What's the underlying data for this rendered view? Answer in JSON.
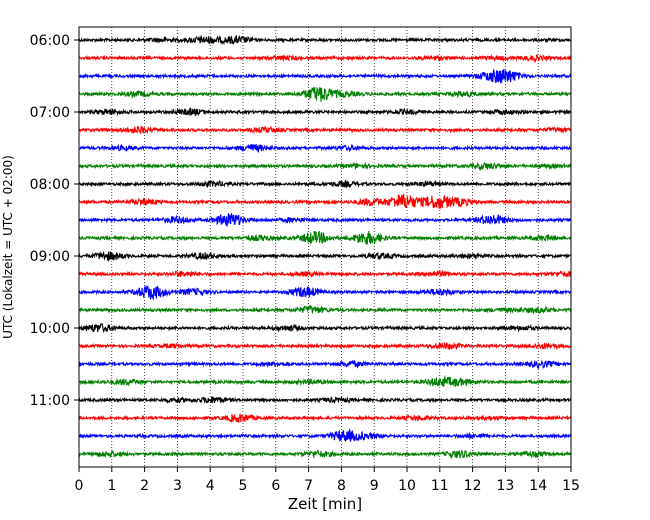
{
  "chart_data": {
    "type": "line",
    "title": "",
    "xlabel": "Zeit  [min]",
    "ylabel": "UTC (Lokalzeit = UTC + 02:00)",
    "xlim": [
      0,
      15
    ],
    "x_ticks": [
      "0",
      "1",
      "2",
      "3",
      "4",
      "5",
      "6",
      "7",
      "8",
      "9",
      "10",
      "11",
      "12",
      "13",
      "14",
      "15"
    ],
    "y_ticks": [
      "06:00",
      "07:00",
      "08:00",
      "09:00",
      "10:00",
      "11:00"
    ],
    "grid": "vertical dotted",
    "trace_interval_min": 15,
    "trace_colors": [
      "#000000",
      "#ff0000",
      "#0000ff",
      "#008000"
    ],
    "series": [
      {
        "start": "06:00",
        "events": [
          [
            2.5,
            1.5
          ],
          [
            4.0,
            2
          ],
          [
            4.8,
            3
          ],
          [
            3.6,
            1.5
          ]
        ]
      },
      {
        "start": "06:15",
        "events": [
          [
            6.2,
            1.5
          ],
          [
            10.8,
            1.2
          ],
          [
            12.7,
            1.2
          ],
          [
            13.9,
            1.8
          ]
        ]
      },
      {
        "start": "06:30",
        "events": [
          [
            13.0,
            6
          ],
          [
            12.5,
            3
          ]
        ]
      },
      {
        "start": "06:45",
        "events": [
          [
            1.8,
            2
          ],
          [
            7.3,
            7
          ],
          [
            8.1,
            2
          ],
          [
            11.7,
            2
          ]
        ]
      },
      {
        "start": "07:00",
        "events": [
          [
            0.9,
            2
          ],
          [
            3.4,
            2.5
          ],
          [
            10.0,
            1.5
          ],
          [
            13.0,
            1.5
          ]
        ]
      },
      {
        "start": "07:15",
        "events": [
          [
            1.8,
            2.5
          ],
          [
            5.7,
            2
          ],
          [
            14.6,
            1.5
          ]
        ]
      },
      {
        "start": "07:30",
        "events": [
          [
            1.3,
            1.5
          ],
          [
            5.3,
            3
          ],
          [
            8.2,
            1.5
          ]
        ]
      },
      {
        "start": "07:45",
        "events": [
          [
            8.5,
            1.5
          ],
          [
            12.4,
            2.5
          ],
          [
            14.4,
            1
          ]
        ]
      },
      {
        "start": "08:00",
        "events": [
          [
            4.1,
            2
          ],
          [
            8.1,
            2
          ],
          [
            10.6,
            1.5
          ]
        ]
      },
      {
        "start": "08:15",
        "events": [
          [
            2.0,
            2.5
          ],
          [
            8.9,
            3
          ],
          [
            9.9,
            7
          ],
          [
            10.9,
            6
          ],
          [
            11.6,
            3
          ]
        ]
      },
      {
        "start": "08:30",
        "events": [
          [
            3.0,
            2.5
          ],
          [
            4.6,
            6
          ],
          [
            12.6,
            4.5
          ],
          [
            6.5,
            1.5
          ]
        ]
      },
      {
        "start": "08:45",
        "events": [
          [
            7.2,
            5.5
          ],
          [
            8.8,
            6
          ],
          [
            14.2,
            2
          ],
          [
            5.5,
            2
          ]
        ]
      },
      {
        "start": "09:00",
        "events": [
          [
            0.9,
            3.5
          ],
          [
            3.8,
            2.5
          ],
          [
            9.2,
            2
          ],
          [
            11.9,
            1.5
          ]
        ]
      },
      {
        "start": "09:15",
        "events": [
          [
            3.2,
            2
          ],
          [
            10.9,
            2
          ],
          [
            14.9,
            2
          ],
          [
            6.9,
            1.5
          ]
        ]
      },
      {
        "start": "09:30",
        "events": [
          [
            2.2,
            6.5
          ],
          [
            3.5,
            2.5
          ],
          [
            6.9,
            4.5
          ],
          [
            11.0,
            2.5
          ]
        ]
      },
      {
        "start": "09:45",
        "events": [
          [
            7.1,
            3
          ],
          [
            14.0,
            2
          ],
          [
            13.0,
            1.2
          ]
        ]
      },
      {
        "start": "10:00",
        "events": [
          [
            0.6,
            3.5
          ],
          [
            6.4,
            2
          ],
          [
            13.5,
            1.5
          ]
        ]
      },
      {
        "start": "10:15",
        "events": [
          [
            11.2,
            2.5
          ],
          [
            14.2,
            2
          ],
          [
            2.8,
            1.2
          ]
        ]
      },
      {
        "start": "10:30",
        "events": [
          [
            8.3,
            2
          ],
          [
            14.1,
            2.5
          ],
          [
            6.0,
            1.2
          ]
        ]
      },
      {
        "start": "10:45",
        "events": [
          [
            1.4,
            2
          ],
          [
            7.0,
            1.5
          ],
          [
            11.0,
            3.5
          ],
          [
            11.6,
            2.5
          ]
        ]
      },
      {
        "start": "11:00",
        "events": [
          [
            3.0,
            1.5
          ],
          [
            4.1,
            2.5
          ],
          [
            7.8,
            1.5
          ]
        ]
      },
      {
        "start": "11:15",
        "events": [
          [
            4.9,
            3.5
          ],
          [
            10.3,
            1.5
          ],
          [
            12.5,
            1.2
          ]
        ]
      },
      {
        "start": "11:30",
        "events": [
          [
            8.1,
            5
          ],
          [
            8.8,
            2
          ],
          [
            12.0,
            1.2
          ]
        ]
      },
      {
        "start": "11:45",
        "events": [
          [
            0.9,
            2
          ],
          [
            7.3,
            2.5
          ],
          [
            11.6,
            3
          ],
          [
            13.8,
            2
          ]
        ]
      }
    ]
  }
}
